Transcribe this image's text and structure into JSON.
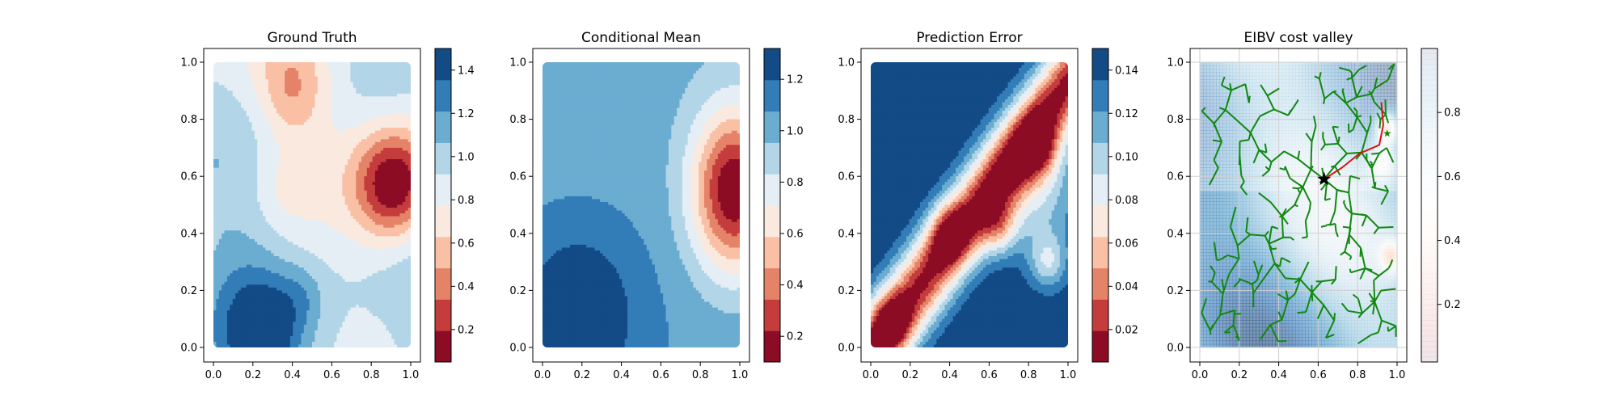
{
  "chart_data": [
    {
      "type": "heatmap",
      "title": "Ground Truth",
      "xlim": [
        0,
        1
      ],
      "ylim": [
        0,
        1
      ],
      "xticks": [
        "0.0",
        "0.2",
        "0.4",
        "0.6",
        "0.8",
        "1.0"
      ],
      "yticks": [
        "0.0",
        "0.2",
        "0.4",
        "0.6",
        "0.8",
        "1.0"
      ],
      "colormap": "RdBu",
      "colorbar": {
        "range": [
          0.05,
          1.5
        ],
        "ticks": [
          "0.2",
          "0.4",
          "0.6",
          "0.8",
          "1.0",
          "1.2",
          "1.4"
        ],
        "tick_values": [
          0.2,
          0.4,
          0.6,
          0.8,
          1.0,
          1.2,
          1.4
        ],
        "levels": 10
      },
      "features": [
        {
          "x": 0.92,
          "y": 0.57,
          "value": 0.08,
          "spread": 0.14
        },
        {
          "x": 0.25,
          "y": 0.05,
          "value": 1.45,
          "spread": 0.12
        },
        {
          "x": 0.4,
          "y": 0.9,
          "value": 0.65,
          "spread": 0.12
        },
        {
          "x": 0.1,
          "y": 0.2,
          "value": 1.15,
          "spread": 0.2
        }
      ]
    },
    {
      "type": "heatmap",
      "title": "Conditional Mean",
      "xlim": [
        0,
        1
      ],
      "ylim": [
        0,
        1
      ],
      "xticks": [
        "0.0",
        "0.2",
        "0.4",
        "0.6",
        "0.8",
        "1.0"
      ],
      "yticks": [
        "0.0",
        "0.2",
        "0.4",
        "0.6",
        "0.8",
        "1.0"
      ],
      "colormap": "RdBu",
      "colorbar": {
        "range": [
          0.1,
          1.32
        ],
        "ticks": [
          "0.2",
          "0.4",
          "0.6",
          "0.8",
          "1.0",
          "1.2"
        ],
        "tick_values": [
          0.2,
          0.4,
          0.6,
          0.8,
          1.0,
          1.2
        ],
        "levels": 10
      },
      "features": [
        {
          "x": 0.97,
          "y": 0.55,
          "value": 0.12,
          "spread": 0.16
        },
        {
          "x": 0.18,
          "y": 0.12,
          "value": 1.3,
          "spread": 0.22
        }
      ]
    },
    {
      "type": "heatmap",
      "title": "Prediction Error",
      "xlim": [
        0,
        1
      ],
      "ylim": [
        0,
        1
      ],
      "xticks": [
        "0.0",
        "0.2",
        "0.4",
        "0.6",
        "0.8",
        "1.0"
      ],
      "yticks": [
        "0.0",
        "0.2",
        "0.4",
        "0.6",
        "0.8",
        "1.0"
      ],
      "colormap": "RdBu",
      "colorbar": {
        "range": [
          0.005,
          0.15
        ],
        "ticks": [
          "0.02",
          "0.04",
          "0.06",
          "0.08",
          "0.10",
          "0.12",
          "0.14"
        ],
        "tick_values": [
          0.02,
          0.04,
          0.06,
          0.08,
          0.1,
          0.12,
          0.14
        ],
        "levels": 10
      },
      "features": [
        {
          "x": 0.1,
          "y": 0.08,
          "value": 0.015
        },
        {
          "x": 0.4,
          "y": 0.4,
          "value": 0.015
        },
        {
          "x": 0.65,
          "y": 0.42,
          "value": 0.015
        },
        {
          "x": 0.85,
          "y": 0.7,
          "value": 0.015
        },
        {
          "x": 0.9,
          "y": 0.3,
          "value": 0.015
        }
      ]
    },
    {
      "type": "heatmap",
      "title": "EIBV cost valley",
      "xlim": [
        0,
        1
      ],
      "ylim": [
        0,
        1
      ],
      "xticks": [
        "0.0",
        "0.2",
        "0.4",
        "0.6",
        "0.8",
        "1.0"
      ],
      "yticks": [
        "0.0",
        "0.2",
        "0.4",
        "0.6",
        "0.8",
        "1.0"
      ],
      "colormap": "RdBu",
      "colorbar": {
        "range": [
          0.02,
          1.0
        ],
        "ticks": [
          "0.2",
          "0.4",
          "0.6",
          "0.8"
        ],
        "tick_values": [
          0.2,
          0.4,
          0.6,
          0.8
        ],
        "alpha": 0.1
      },
      "grid": true,
      "overlays": {
        "current_location": {
          "x": 0.63,
          "y": 0.59,
          "marker": "black-star"
        },
        "next_target": {
          "x": 0.95,
          "y": 0.75,
          "marker": "green-star"
        },
        "selected_path": [
          [
            0.63,
            0.59
          ],
          [
            0.72,
            0.63
          ],
          [
            0.81,
            0.68
          ],
          [
            0.91,
            0.71
          ],
          [
            0.93,
            0.78
          ],
          [
            0.92,
            0.86
          ]
        ],
        "tree_color": "#118811",
        "path_color": "#dd1111"
      }
    }
  ]
}
